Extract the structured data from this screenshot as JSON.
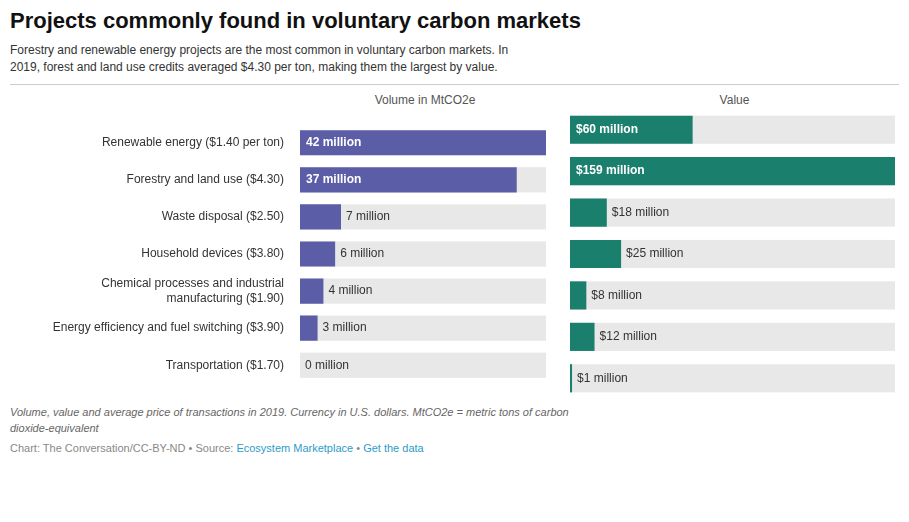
{
  "title": "Projects commonly found in voluntary carbon markets",
  "subtitle": "Forestry and renewable energy projects are the most common in voluntary carbon markets. In\n2019, forest and land use credits averaged $4.30 per ton, making them the largest by value.",
  "footnote": [
    "Volume, value and average price of transactions in 2019. Currency in U.S. dollars. MtCO2e = metric tons of carbon",
    "dioxide-equivalent"
  ],
  "source": [
    {
      "text": "Chart: The Conversation/CC-BY-ND • Source: ",
      "color": "#888888"
    },
    {
      "text": "Ecosystem Marketplace",
      "color": "#2E9CCA"
    },
    {
      "text": " • ",
      "color": "#888888"
    },
    {
      "text": "Get the data",
      "color": "#2E9CCA"
    }
  ],
  "chart_data": [
    {
      "type": "bar",
      "orientation": "horizontal",
      "title": "Volume in MtCO2e",
      "categories": [
        "Renewable energy ($1.40 per ton)",
        "Forestry and land use ($4.30)",
        "Waste disposal ($2.50)",
        "Household devices ($3.80)",
        "Chemical processes and industrial\nmanufacturing ($1.90)",
        "Energy efficiency and fuel switching ($3.90)",
        "Transportation ($1.70)"
      ],
      "values": [
        42,
        37,
        7,
        6,
        4,
        3,
        0
      ],
      "value_labels": [
        "42 million",
        "37 million",
        "7 million",
        "6 million",
        "4 million",
        "3 million",
        "0 million"
      ],
      "color": "#5B5EA6",
      "xlim": [
        0,
        42
      ],
      "grid": false,
      "data_labels": true,
      "tick_labels": "y"
    },
    {
      "type": "bar",
      "orientation": "horizontal",
      "title": "Value",
      "categories": [
        "Renewable energy ($1.40 per ton)",
        "Forestry and land use ($4.30)",
        "Waste disposal ($2.50)",
        "Household devices ($3.80)",
        "Chemical processes and industrial\nmanufacturing ($1.90)",
        "Energy efficiency and fuel switching ($3.90)",
        "Transportation ($1.70)"
      ],
      "values": [
        60,
        159,
        18,
        25,
        8,
        12,
        1
      ],
      "value_labels": [
        "$60 million",
        "$159 million",
        "$18 million",
        "$25 million",
        "$8 million",
        "$12 million",
        "$1 million"
      ],
      "color": "#1B7F6E",
      "xlim": [
        0,
        159
      ],
      "grid": false,
      "data_labels": true,
      "tick_labels": false
    }
  ]
}
